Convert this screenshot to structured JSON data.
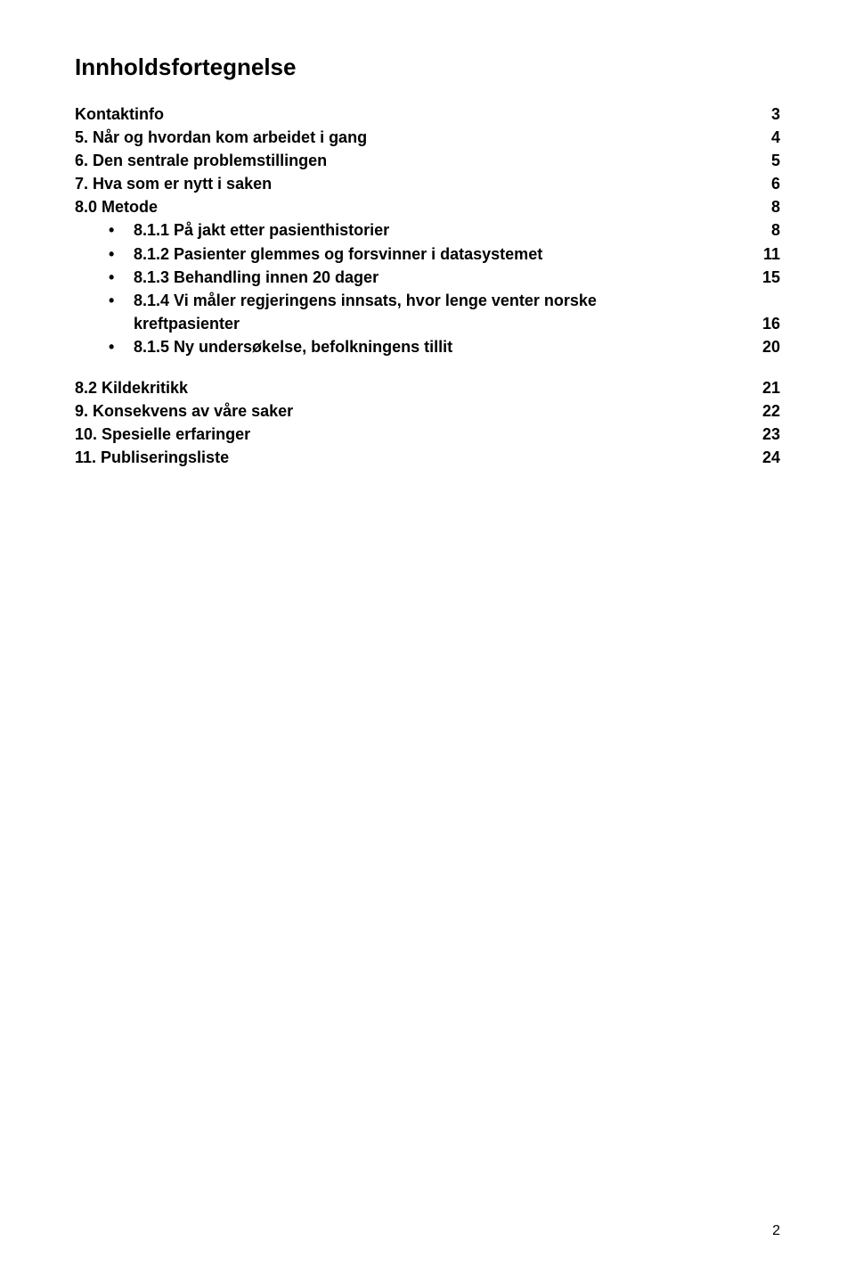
{
  "title": "Innholdsfortegnelse",
  "entries": {
    "kontaktinfo": {
      "label": "Kontaktinfo",
      "page": "3"
    },
    "s5": {
      "label": "5. Når og hvordan kom arbeidet i gang",
      "page": "4"
    },
    "s6": {
      "label": "6. Den sentrale problemstillingen",
      "page": "5"
    },
    "s7": {
      "label": "7. Hva som er nytt i saken",
      "page": "6"
    },
    "s8_0": {
      "label": "8.0 Metode",
      "page": "8"
    },
    "s8_1_1": {
      "label": "8.1.1 På jakt etter pasienthistorier",
      "page": "8"
    },
    "s8_1_2": {
      "label": "8.1.2 Pasienter glemmes og forsvinner i datasystemet",
      "page": "11"
    },
    "s8_1_3": {
      "label": "8.1.3 Behandling innen 20 dager",
      "page": "15"
    },
    "s8_1_4_line1": {
      "label": "8.1.4 Vi måler regjeringens innsats, hvor lenge venter norske"
    },
    "s8_1_4_line2": {
      "label": "kreftpasienter",
      "page": "16"
    },
    "s8_1_5": {
      "label": "8.1.5 Ny undersøkelse, befolkningens tillit",
      "page": "20"
    },
    "s8_2": {
      "label": "8.2 Kildekritikk",
      "page": "21"
    },
    "s9": {
      "label": "9. Konsekvens av våre saker",
      "page": "22"
    },
    "s10": {
      "label": "10. Spesielle erfaringer",
      "page": "23"
    },
    "s11": {
      "label": "11. Publiseringsliste",
      "page": "24"
    }
  },
  "page_number": "2",
  "colors": {
    "background": "#ffffff",
    "text": "#000000"
  },
  "typography": {
    "font_family": "Arial",
    "title_fontsize": 26,
    "body_fontsize": 18,
    "body_weight": "bold"
  }
}
